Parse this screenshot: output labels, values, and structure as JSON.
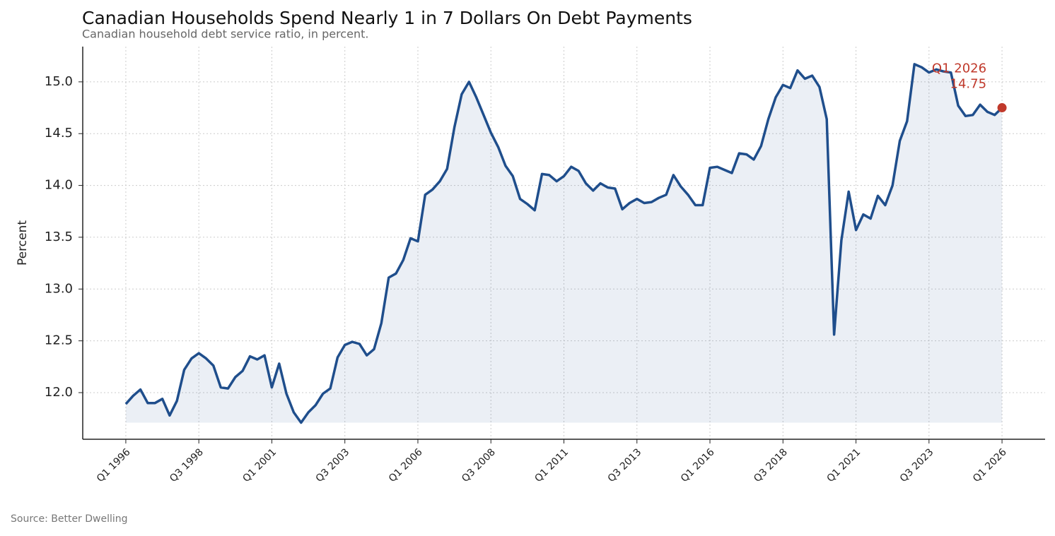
{
  "chart_data": {
    "type": "line",
    "title": "Canadian Households Spend Nearly 1 in 7 Dollars On Debt Payments",
    "subtitle": "Canadian household debt service ratio, in percent.",
    "y_label": "Percent",
    "source": "Source: Better Dwelling",
    "color": "#1f4e8c",
    "annotation_color": "#c0392b",
    "grid": true,
    "categories": [
      "Q1 1996",
      null,
      null,
      null,
      null,
      null,
      null,
      null,
      null,
      null,
      "Q3 1998",
      null,
      null,
      null,
      null,
      null,
      null,
      null,
      null,
      null,
      "Q1 2001",
      null,
      null,
      null,
      null,
      null,
      null,
      null,
      null,
      null,
      "Q3 2003",
      null,
      null,
      null,
      null,
      null,
      null,
      null,
      null,
      null,
      "Q1 2006",
      null,
      null,
      null,
      null,
      null,
      null,
      null,
      null,
      null,
      "Q3 2008",
      null,
      null,
      null,
      null,
      null,
      null,
      null,
      null,
      null,
      "Q1 2011",
      null,
      null,
      null,
      null,
      null,
      null,
      null,
      null,
      null,
      "Q3 2013",
      null,
      null,
      null,
      null,
      null,
      null,
      null,
      null,
      null,
      "Q1 2016",
      null,
      null,
      null,
      null,
      null,
      null,
      null,
      null,
      null,
      "Q3 2018",
      null,
      null,
      null,
      null,
      null,
      null,
      null,
      null,
      null,
      "Q1 2021",
      null,
      null,
      null,
      null,
      null,
      null,
      null,
      null,
      null,
      "Q3 2023",
      null,
      null,
      null,
      null,
      null,
      null,
      null,
      null,
      null,
      "Q1 2026"
    ],
    "values": [
      11.89,
      11.97,
      12.03,
      11.9,
      11.9,
      11.94,
      11.78,
      11.92,
      12.22,
      12.33,
      12.38,
      12.33,
      12.26,
      12.05,
      12.04,
      12.15,
      12.21,
      12.35,
      12.32,
      12.36,
      12.05,
      12.28,
      11.99,
      11.81,
      11.71,
      11.81,
      11.88,
      11.99,
      12.04,
      12.34,
      12.46,
      12.49,
      12.47,
      12.36,
      12.42,
      12.67,
      13.11,
      13.15,
      13.28,
      13.49,
      13.46,
      13.91,
      13.96,
      14.04,
      14.16,
      14.56,
      14.88,
      15.0,
      14.85,
      14.68,
      14.51,
      14.37,
      14.19,
      14.09,
      13.87,
      13.82,
      13.76,
      14.11,
      14.1,
      14.04,
      14.09,
      14.18,
      14.14,
      14.02,
      13.95,
      14.02,
      13.98,
      13.97,
      13.77,
      13.83,
      13.87,
      13.83,
      13.84,
      13.88,
      13.91,
      14.1,
      13.99,
      13.91,
      13.81,
      13.81,
      14.17,
      14.18,
      14.15,
      14.12,
      14.31,
      14.3,
      14.25,
      14.38,
      14.64,
      14.85,
      14.97,
      14.94,
      15.11,
      15.03,
      15.06,
      14.95,
      14.64,
      12.56,
      13.47,
      13.94,
      13.57,
      13.72,
      13.68,
      13.9,
      13.81,
      14.0,
      14.43,
      14.62,
      15.17,
      15.14,
      15.09,
      15.12,
      15.1,
      15.09,
      14.77,
      14.67,
      14.68,
      14.78,
      14.71,
      14.68,
      14.75
    ],
    "ylim": [
      11.55,
      15.34
    ],
    "yticks": [
      {
        "value": 12,
        "label": "12.0"
      },
      12.5,
      {
        "value": 13,
        "label": "13.0"
      },
      13.5,
      {
        "value": 14,
        "label": "14.0"
      },
      14.5,
      {
        "value": 15,
        "label": "15.0"
      }
    ]
  }
}
